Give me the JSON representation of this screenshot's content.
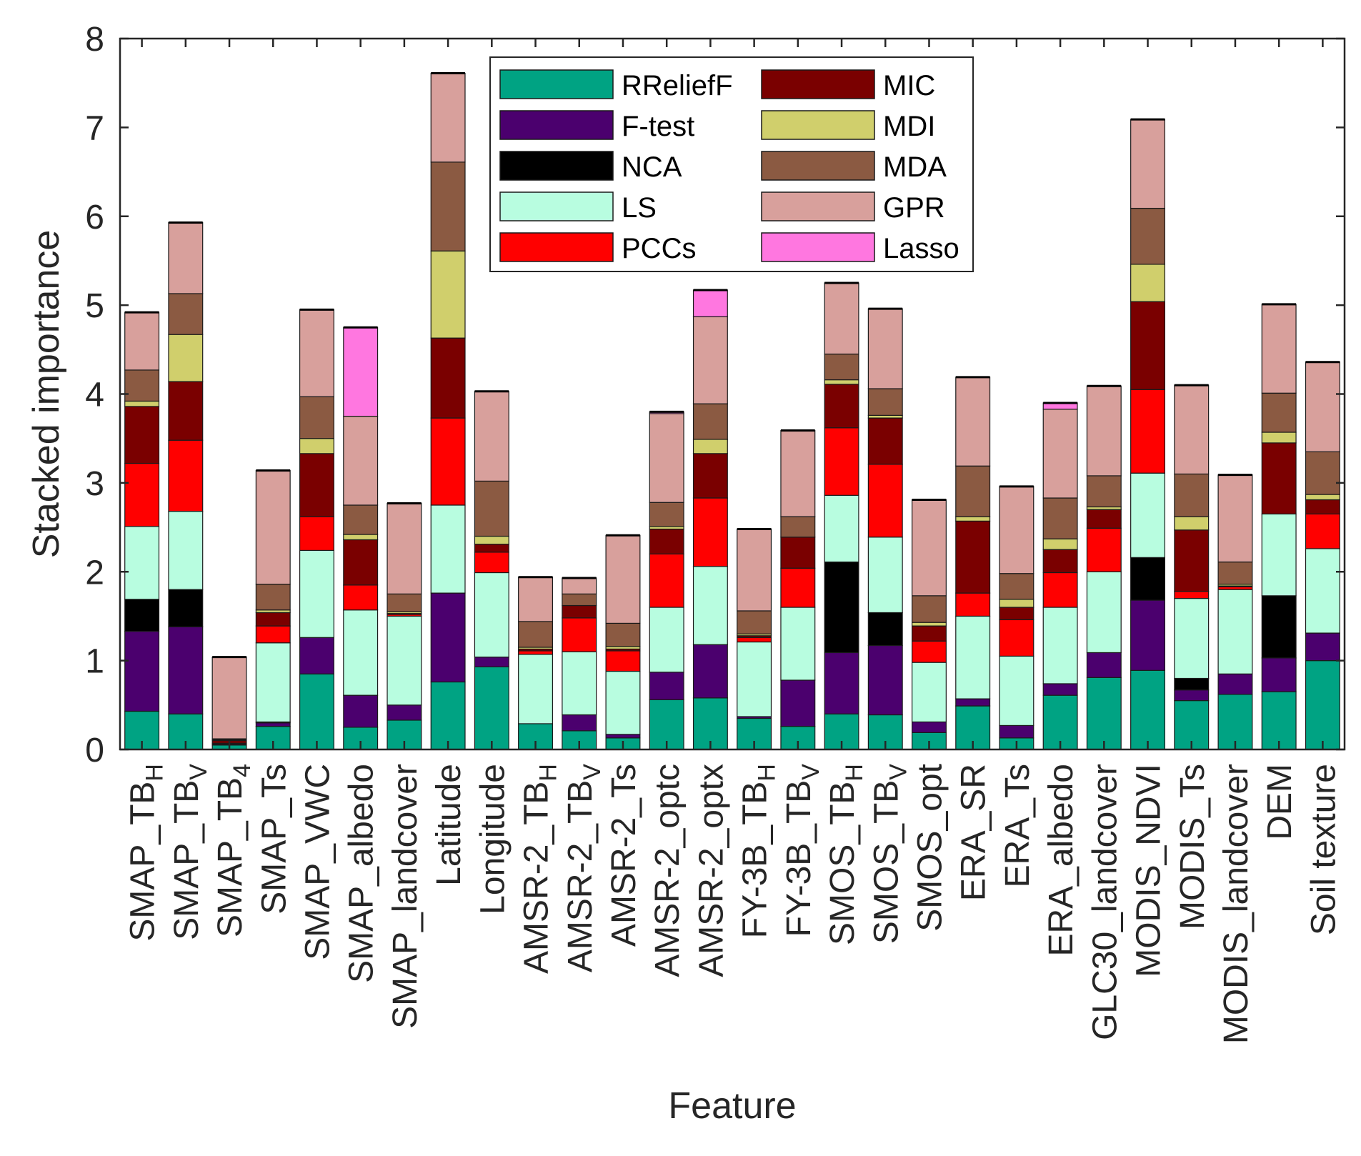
{
  "chart_data": {
    "type": "bar",
    "stacked": true,
    "xlabel": "Feature",
    "ylabel": "Stacked importance",
    "ylim": [
      0,
      8
    ],
    "yticks": [
      0,
      1,
      2,
      3,
      4,
      5,
      6,
      7,
      8
    ],
    "grid": false,
    "legend_position": "top-center",
    "categories": [
      {
        "base": "SMAP_TB",
        "sub": "H"
      },
      {
        "base": "SMAP_TB",
        "sub": "V"
      },
      {
        "base": "SMAP_TB",
        "sub": "4"
      },
      {
        "base": "SMAP_Ts",
        "sub": ""
      },
      {
        "base": "SMAP_VWC",
        "sub": ""
      },
      {
        "base": "SMAP_albedo",
        "sub": ""
      },
      {
        "base": "SMAP_landcover",
        "sub": ""
      },
      {
        "base": "Latitude",
        "sub": ""
      },
      {
        "base": "Longitude",
        "sub": ""
      },
      {
        "base": "AMSR-2_TB",
        "sub": "H"
      },
      {
        "base": "AMSR-2_TB",
        "sub": "V"
      },
      {
        "base": "AMSR-2_Ts",
        "sub": ""
      },
      {
        "base": "AMSR-2_optc",
        "sub": ""
      },
      {
        "base": "AMSR-2_optx",
        "sub": ""
      },
      {
        "base": "FY-3B_TB",
        "sub": "H"
      },
      {
        "base": "FY-3B_TB",
        "sub": "V"
      },
      {
        "base": "SMOS_TB",
        "sub": "H"
      },
      {
        "base": "SMOS_TB",
        "sub": "V"
      },
      {
        "base": "SMOS_opt",
        "sub": ""
      },
      {
        "base": "ERA_SR",
        "sub": ""
      },
      {
        "base": "ERA_Ts",
        "sub": ""
      },
      {
        "base": "ERA_albedo",
        "sub": ""
      },
      {
        "base": "GLC30_landcover",
        "sub": ""
      },
      {
        "base": "MODIS_NDVI",
        "sub": ""
      },
      {
        "base": "MODIS_Ts",
        "sub": ""
      },
      {
        "base": "MODIS_landcover",
        "sub": ""
      },
      {
        "base": "DEM",
        "sub": ""
      },
      {
        "base": "Soil texture",
        "sub": ""
      }
    ],
    "series": [
      {
        "name": "RReliefF",
        "color": "#00a383",
        "values": [
          0.43,
          0.4,
          0.05,
          0.26,
          0.85,
          0.25,
          0.33,
          0.76,
          0.93,
          0.29,
          0.21,
          0.13,
          0.56,
          0.58,
          0.35,
          0.26,
          0.4,
          0.39,
          0.19,
          0.49,
          0.13,
          0.61,
          0.81,
          0.89,
          0.55,
          0.62,
          0.65,
          1.0
        ]
      },
      {
        "name": "F-test",
        "color": "#4b006e",
        "values": [
          0.9,
          0.98,
          0.01,
          0.04,
          0.41,
          0.36,
          0.17,
          1.0,
          0.11,
          0.0,
          0.18,
          0.04,
          0.31,
          0.6,
          0.02,
          0.52,
          0.69,
          0.78,
          0.12,
          0.08,
          0.14,
          0.13,
          0.28,
          0.79,
          0.12,
          0.23,
          0.38,
          0.31
        ]
      },
      {
        "name": "NCA",
        "color": "#000000",
        "values": [
          0.36,
          0.42,
          0.0,
          0.01,
          0.0,
          0.0,
          0.0,
          0.0,
          0.0,
          0.0,
          0.0,
          0.0,
          0.0,
          0.0,
          0.0,
          0.0,
          1.02,
          0.37,
          0.0,
          0.0,
          0.0,
          0.0,
          0.0,
          0.48,
          0.13,
          0.0,
          0.7,
          0.0
        ]
      },
      {
        "name": "LS",
        "color": "#b8fde0",
        "values": [
          0.82,
          0.88,
          0.0,
          0.89,
          0.98,
          0.96,
          1.0,
          0.99,
          0.95,
          0.78,
          0.71,
          0.71,
          0.73,
          0.88,
          0.84,
          0.82,
          0.75,
          0.85,
          0.67,
          0.93,
          0.78,
          0.86,
          0.91,
          0.95,
          0.9,
          0.95,
          0.92,
          0.95
        ]
      },
      {
        "name": "PCCs",
        "color": "#ff0000",
        "values": [
          0.71,
          0.8,
          0.01,
          0.19,
          0.38,
          0.28,
          0.02,
          0.98,
          0.23,
          0.04,
          0.38,
          0.23,
          0.6,
          0.77,
          0.05,
          0.44,
          0.76,
          0.82,
          0.24,
          0.26,
          0.41,
          0.39,
          0.49,
          0.94,
          0.08,
          0.03,
          0.0,
          0.39
        ]
      },
      {
        "name": "MIC",
        "color": "#7a0000",
        "values": [
          0.64,
          0.66,
          0.03,
          0.15,
          0.71,
          0.51,
          0.01,
          0.9,
          0.09,
          0.02,
          0.14,
          0.02,
          0.28,
          0.5,
          0.02,
          0.35,
          0.49,
          0.52,
          0.17,
          0.81,
          0.14,
          0.26,
          0.21,
          0.99,
          0.69,
          0.01,
          0.8,
          0.16
        ]
      },
      {
        "name": "MDI",
        "color": "#d0cf6c",
        "values": [
          0.06,
          0.53,
          0.01,
          0.03,
          0.17,
          0.06,
          0.02,
          0.98,
          0.09,
          0.02,
          0.0,
          0.03,
          0.03,
          0.16,
          0.02,
          0.0,
          0.05,
          0.03,
          0.04,
          0.05,
          0.09,
          0.12,
          0.03,
          0.42,
          0.15,
          0.02,
          0.12,
          0.06
        ]
      },
      {
        "name": "MDA",
        "color": "#8b5a42",
        "values": [
          0.35,
          0.46,
          0.01,
          0.29,
          0.47,
          0.33,
          0.2,
          1.0,
          0.62,
          0.29,
          0.13,
          0.26,
          0.27,
          0.4,
          0.26,
          0.23,
          0.29,
          0.3,
          0.3,
          0.57,
          0.29,
          0.46,
          0.35,
          0.63,
          0.48,
          0.25,
          0.44,
          0.48
        ]
      },
      {
        "name": "GPR",
        "color": "#d8a09c",
        "values": [
          0.65,
          0.8,
          0.92,
          1.28,
          0.98,
          1.0,
          1.02,
          1.0,
          1.01,
          0.5,
          0.18,
          0.99,
          1.0,
          0.98,
          0.92,
          0.97,
          0.8,
          0.9,
          1.08,
          1.0,
          0.98,
          1.0,
          1.01,
          1.0,
          1.0,
          0.98,
          1.0,
          1.01
        ]
      },
      {
        "name": "Lasso",
        "color": "#ff77e0",
        "values": [
          0.0,
          0.0,
          0.0,
          0.0,
          0.0,
          1.0,
          0.0,
          0.0,
          0.0,
          0.0,
          0.0,
          0.0,
          0.02,
          0.3,
          0.0,
          0.0,
          0.0,
          0.0,
          0.0,
          0.0,
          0.0,
          0.07,
          0.0,
          0.0,
          0.0,
          0.0,
          0.0,
          0.0
        ]
      }
    ],
    "top_cap_color": "#000000"
  }
}
